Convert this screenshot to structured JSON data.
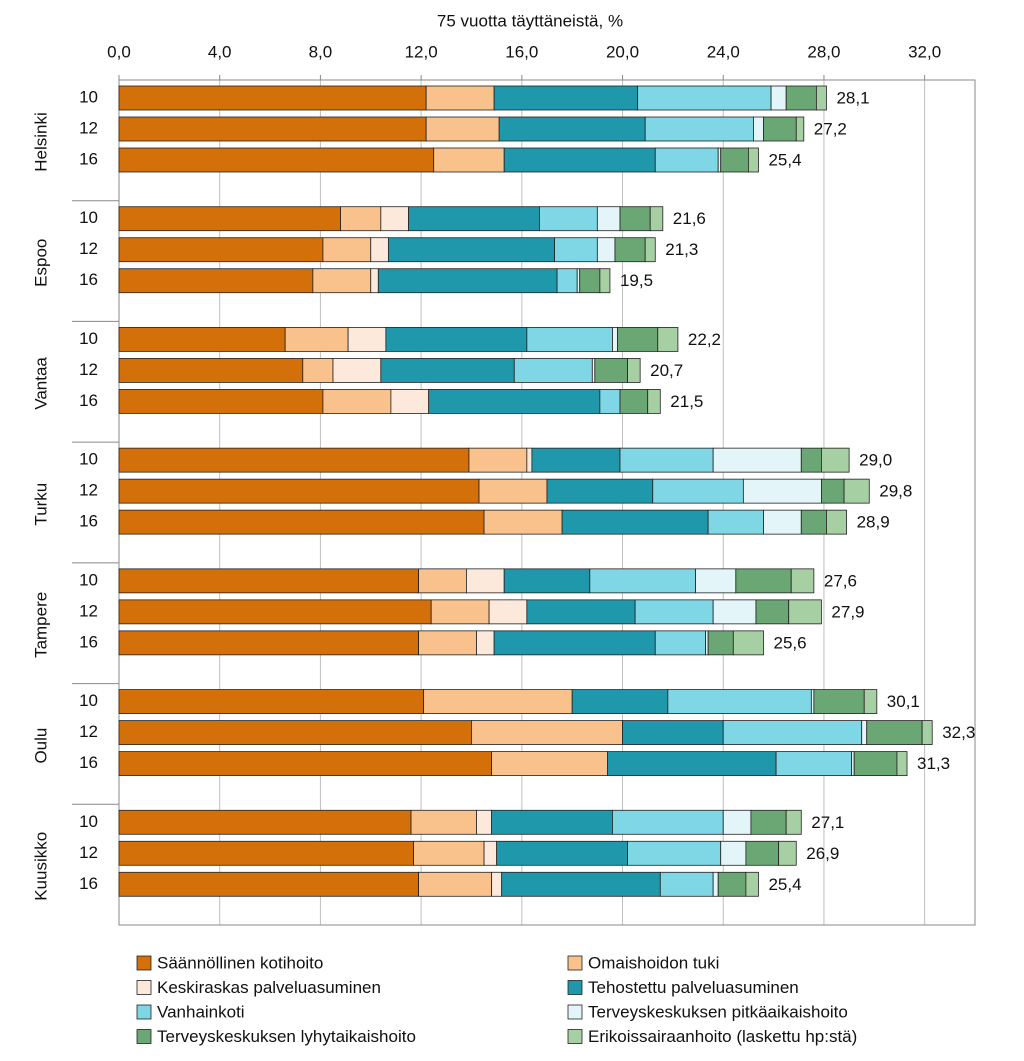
{
  "chart_data": {
    "type": "stacked-bar-horizontal",
    "title": "75 vuotta täyttäneistä, %",
    "groups": [
      {
        "name": "Helsinki",
        "categories": [
          "10",
          "12",
          "16"
        ]
      },
      {
        "name": "Espoo",
        "categories": [
          "10",
          "12",
          "16"
        ]
      },
      {
        "name": "Vantaa",
        "categories": [
          "10",
          "12",
          "16"
        ]
      },
      {
        "name": "Turku",
        "categories": [
          "10",
          "12",
          "16"
        ]
      },
      {
        "name": "Tampere",
        "categories": [
          "10",
          "12",
          "16"
        ]
      },
      {
        "name": "Oulu",
        "categories": [
          "10",
          "12",
          "16"
        ]
      },
      {
        "name": "Kuusikko",
        "categories": [
          "10",
          "12",
          "16"
        ]
      }
    ],
    "xlim": [
      0,
      34
    ],
    "xticks": [
      {
        "value": 0,
        "label": "0,0"
      },
      {
        "value": 4,
        "label": "4,0"
      },
      {
        "value": 8,
        "label": "8,0"
      },
      {
        "value": 12,
        "label": "12,0"
      },
      {
        "value": 16,
        "label": "16,0"
      },
      {
        "value": 20,
        "label": "20,0"
      },
      {
        "value": 24,
        "label": "24,0"
      },
      {
        "value": 28,
        "label": "28,0"
      },
      {
        "value": 32,
        "label": "32,0"
      }
    ],
    "grid": true,
    "series": [
      {
        "name": "Säännöllinen kotihoito",
        "color": "#d4700a",
        "values": [
          12.2,
          12.2,
          12.5,
          8.8,
          8.1,
          7.7,
          6.6,
          7.3,
          8.1,
          13.9,
          14.3,
          14.5,
          11.9,
          12.4,
          11.9,
          12.1,
          14.0,
          14.8,
          11.6,
          11.7,
          11.9
        ]
      },
      {
        "name": "Omaishoidon tuki",
        "color": "#f9c28c",
        "values": [
          2.7,
          2.9,
          2.8,
          1.6,
          1.9,
          2.3,
          2.5,
          1.2,
          2.7,
          2.3,
          2.7,
          3.1,
          1.9,
          2.3,
          2.3,
          5.9,
          6.0,
          4.6,
          2.6,
          2.8,
          2.9
        ]
      },
      {
        "name": "Keskiraskas palveluasuminen",
        "color": "#fde9dc",
        "values": [
          0,
          0,
          0,
          1.1,
          0.7,
          0.3,
          1.5,
          1.9,
          1.5,
          0.2,
          0,
          0,
          1.5,
          1.5,
          0.7,
          0,
          0,
          0,
          0.6,
          0.5,
          0.4
        ]
      },
      {
        "name": "Tehostettu palveluasuminen",
        "color": "#1f98ac",
        "values": [
          5.7,
          5.8,
          6.0,
          5.2,
          6.6,
          7.1,
          5.6,
          5.3,
          6.8,
          3.5,
          4.2,
          5.8,
          3.4,
          4.3,
          6.4,
          3.8,
          4.0,
          6.7,
          4.8,
          5.2,
          6.3
        ]
      },
      {
        "name": "Vanhainkoti",
        "color": "#7fd6e4",
        "values": [
          5.3,
          4.3,
          2.5,
          2.3,
          1.7,
          0.8,
          3.4,
          3.1,
          0.8,
          3.7,
          3.6,
          2.2,
          4.2,
          3.1,
          2.0,
          5.7,
          5.5,
          3.0,
          4.4,
          3.7,
          2.1
        ]
      },
      {
        "name": "Terveyskeskuksen pitkäaikaishoito",
        "color": "#e3f5f8",
        "values": [
          0.6,
          0.4,
          0.1,
          0.9,
          0.7,
          0.1,
          0.2,
          0.1,
          0,
          3.5,
          3.1,
          1.5,
          1.6,
          1.7,
          0.1,
          0.1,
          0.2,
          0.1,
          1.1,
          1.0,
          0.2
        ]
      },
      {
        "name": "Terveyskeskuksen lyhytaikaishoito",
        "color": "#6aa774",
        "values": [
          1.2,
          1.3,
          1.1,
          1.2,
          1.2,
          0.8,
          1.6,
          1.3,
          1.1,
          0.8,
          0.9,
          1.0,
          2.2,
          1.3,
          1.0,
          2.0,
          2.2,
          1.7,
          1.4,
          1.3,
          1.1
        ]
      },
      {
        "name": "Erikoissairaanhoito (laskettu hp:stä)",
        "color": "#a6cfa3",
        "values": [
          0.4,
          0.3,
          0.4,
          0.5,
          0.4,
          0.4,
          0.8,
          0.5,
          0.5,
          1.1,
          1.0,
          0.8,
          0.9,
          1.3,
          1.2,
          0.5,
          0.4,
          0.4,
          0.6,
          0.7,
          0.5
        ]
      }
    ],
    "totals": [
      28.1,
      27.2,
      25.4,
      21.6,
      21.3,
      19.5,
      22.2,
      20.7,
      21.5,
      29.0,
      29.8,
      28.9,
      27.6,
      27.9,
      25.6,
      30.1,
      32.3,
      31.3,
      27.1,
      26.9,
      25.4
    ],
    "total_labels": [
      "28,1",
      "27,2",
      "25,4",
      "21,6",
      "21,3",
      "19,5",
      "22,2",
      "20,7",
      "21,5",
      "29,0",
      "29,8",
      "28,9",
      "27,6",
      "27,9",
      "25,6",
      "30,1",
      "32,3",
      "31,3",
      "27,1",
      "26,9",
      "25,4"
    ]
  }
}
